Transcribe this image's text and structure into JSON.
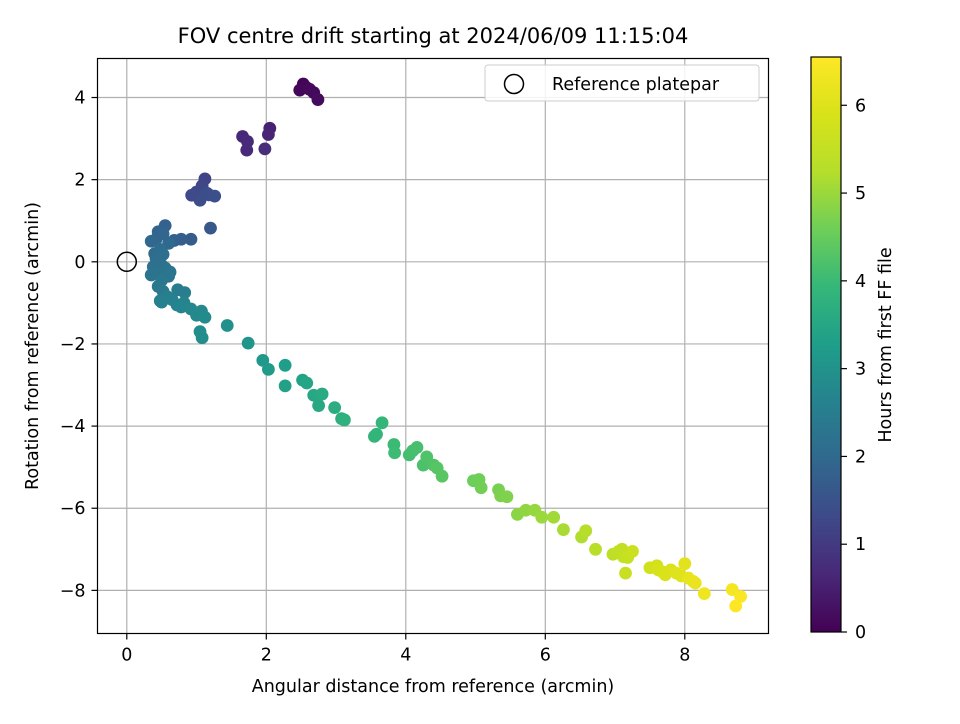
{
  "chart_data": {
    "type": "scatter",
    "title": "FOV centre drift starting at 2024/06/09 11:15:04",
    "xlabel": "Angular distance from reference (arcmin)",
    "ylabel": "Rotation from reference (arcmin)",
    "xlim": [
      -0.42,
      9.2
    ],
    "ylim": [
      -9.05,
      4.95
    ],
    "xticks": [
      0,
      2,
      4,
      6,
      8
    ],
    "yticks": [
      -8,
      -6,
      -4,
      -2,
      0,
      2,
      4
    ],
    "grid": true,
    "legend": {
      "entries": [
        "Reference platepar"
      ],
      "placement": "top-right"
    },
    "reference_point": {
      "x": 0,
      "y": 0,
      "label": "Reference platepar"
    },
    "colorbar": {
      "label": "Hours from first FF file",
      "range": [
        0,
        6.55
      ],
      "ticks": [
        0,
        1,
        2,
        3,
        4,
        5,
        6
      ],
      "colormap": "viridis"
    },
    "series": [
      {
        "points": [
          [
            2.53,
            4.33,
            0.05
          ],
          [
            2.57,
            4.25,
            0.08
          ],
          [
            2.48,
            4.18,
            0.1
          ],
          [
            2.62,
            4.2,
            0.12
          ],
          [
            2.68,
            4.12,
            0.14
          ],
          [
            2.74,
            3.95,
            0.18
          ],
          [
            2.05,
            3.25,
            0.55
          ],
          [
            2.03,
            3.1,
            0.6
          ],
          [
            1.66,
            3.05,
            0.65
          ],
          [
            1.73,
            2.93,
            0.7
          ],
          [
            1.72,
            2.72,
            0.72
          ],
          [
            1.98,
            2.75,
            0.78
          ],
          [
            1.12,
            2.02,
            1.2
          ],
          [
            1.08,
            1.85,
            1.25
          ],
          [
            1.0,
            1.7,
            1.3
          ],
          [
            0.93,
            1.62,
            1.32
          ],
          [
            1.18,
            1.63,
            1.35
          ],
          [
            1.05,
            1.5,
            1.38
          ],
          [
            1.15,
            1.67,
            1.4
          ],
          [
            1.26,
            1.6,
            1.45
          ],
          [
            1.2,
            0.82,
            1.6
          ],
          [
            0.92,
            0.55,
            1.7
          ],
          [
            0.78,
            0.55,
            1.75
          ],
          [
            0.68,
            0.52,
            1.8
          ],
          [
            0.55,
            0.88,
            1.85
          ],
          [
            0.45,
            0.73,
            1.9
          ],
          [
            0.52,
            0.68,
            1.92
          ],
          [
            0.42,
            0.55,
            1.95
          ],
          [
            0.35,
            0.5,
            1.98
          ],
          [
            0.6,
            0.45,
            2.0
          ],
          [
            0.4,
            0.2,
            2.05
          ],
          [
            0.48,
            0.3,
            2.08
          ],
          [
            0.42,
            0.08,
            2.1
          ],
          [
            0.52,
            0.18,
            2.12
          ],
          [
            0.46,
            0.05,
            2.15
          ],
          [
            0.5,
            -0.08,
            2.18
          ],
          [
            0.38,
            -0.12,
            2.2
          ],
          [
            0.55,
            -0.15,
            2.22
          ],
          [
            0.45,
            -0.25,
            2.25
          ],
          [
            0.35,
            -0.32,
            2.27
          ],
          [
            0.62,
            -0.25,
            2.3
          ],
          [
            0.6,
            -0.35,
            2.32
          ],
          [
            0.5,
            -0.45,
            2.35
          ],
          [
            0.45,
            -0.6,
            2.38
          ],
          [
            0.52,
            -0.72,
            2.4
          ],
          [
            0.73,
            -0.68,
            2.45
          ],
          [
            0.83,
            -0.75,
            2.5
          ],
          [
            0.48,
            -0.95,
            2.52
          ],
          [
            0.58,
            -0.85,
            2.55
          ],
          [
            0.5,
            -0.98,
            2.58
          ],
          [
            0.65,
            -0.92,
            2.6
          ],
          [
            0.72,
            -1.05,
            2.62
          ],
          [
            0.82,
            -1.0,
            2.65
          ],
          [
            0.78,
            -1.1,
            2.68
          ],
          [
            0.92,
            -1.15,
            2.72
          ],
          [
            1.07,
            -1.2,
            2.75
          ],
          [
            1.0,
            -1.3,
            2.78
          ],
          [
            1.12,
            -1.35,
            2.82
          ],
          [
            1.05,
            -1.7,
            2.85
          ],
          [
            1.08,
            -1.85,
            2.88
          ],
          [
            1.44,
            -1.55,
            2.95
          ],
          [
            1.74,
            -1.98,
            3.05
          ],
          [
            1.95,
            -2.4,
            3.15
          ],
          [
            2.03,
            -2.62,
            3.2
          ],
          [
            2.27,
            -2.52,
            3.28
          ],
          [
            2.27,
            -3.02,
            3.35
          ],
          [
            2.52,
            -2.88,
            3.4
          ],
          [
            2.58,
            -2.95,
            3.45
          ],
          [
            2.68,
            -3.25,
            3.52
          ],
          [
            2.75,
            -3.5,
            3.55
          ],
          [
            2.8,
            -3.22,
            3.58
          ],
          [
            2.98,
            -3.55,
            3.65
          ],
          [
            3.08,
            -3.82,
            3.7
          ],
          [
            3.12,
            -3.85,
            3.75
          ],
          [
            3.55,
            -4.25,
            3.85
          ],
          [
            3.58,
            -4.2,
            3.88
          ],
          [
            3.66,
            -3.92,
            3.9
          ],
          [
            3.83,
            -4.45,
            4.0
          ],
          [
            3.84,
            -4.65,
            4.02
          ],
          [
            4.05,
            -4.7,
            4.1
          ],
          [
            4.1,
            -4.6,
            4.13
          ],
          [
            4.16,
            -4.52,
            4.15
          ],
          [
            4.25,
            -4.95,
            4.2
          ],
          [
            4.3,
            -4.75,
            4.23
          ],
          [
            4.4,
            -4.95,
            4.28
          ],
          [
            4.45,
            -5.02,
            4.32
          ],
          [
            4.52,
            -5.22,
            4.36
          ],
          [
            4.97,
            -5.33,
            4.55
          ],
          [
            5.05,
            -5.3,
            4.58
          ],
          [
            5.08,
            -5.5,
            4.62
          ],
          [
            5.33,
            -5.55,
            4.68
          ],
          [
            5.36,
            -5.7,
            4.72
          ],
          [
            5.45,
            -5.72,
            4.75
          ],
          [
            5.6,
            -6.15,
            4.85
          ],
          [
            5.72,
            -6.05,
            4.9
          ],
          [
            5.85,
            -6.05,
            4.95
          ],
          [
            5.95,
            -6.22,
            5.0
          ],
          [
            6.12,
            -6.22,
            5.05
          ],
          [
            6.26,
            -6.52,
            5.12
          ],
          [
            6.52,
            -6.7,
            5.2
          ],
          [
            6.58,
            -6.55,
            5.25
          ],
          [
            6.72,
            -7.0,
            5.3
          ],
          [
            6.97,
            -7.12,
            5.4
          ],
          [
            7.05,
            -7.05,
            5.45
          ],
          [
            7.1,
            -7.0,
            5.48
          ],
          [
            7.12,
            -7.18,
            5.52
          ],
          [
            7.18,
            -7.2,
            5.55
          ],
          [
            7.15,
            -7.58,
            5.6
          ],
          [
            7.25,
            -7.05,
            5.65
          ],
          [
            7.5,
            -7.45,
            5.75
          ],
          [
            7.6,
            -7.4,
            5.8
          ],
          [
            7.62,
            -7.5,
            5.85
          ],
          [
            7.68,
            -7.55,
            5.9
          ],
          [
            7.72,
            -7.62,
            5.93
          ],
          [
            7.8,
            -7.5,
            5.96
          ],
          [
            7.88,
            -7.58,
            6.0
          ],
          [
            7.95,
            -7.65,
            6.04
          ],
          [
            8.0,
            -7.35,
            6.08
          ],
          [
            8.05,
            -7.7,
            6.12
          ],
          [
            8.12,
            -7.78,
            6.18
          ],
          [
            8.15,
            -7.82,
            6.22
          ],
          [
            8.28,
            -8.08,
            6.3
          ],
          [
            8.68,
            -7.98,
            6.4
          ],
          [
            8.8,
            -8.15,
            6.48
          ],
          [
            8.73,
            -8.38,
            6.55
          ]
        ]
      }
    ]
  }
}
